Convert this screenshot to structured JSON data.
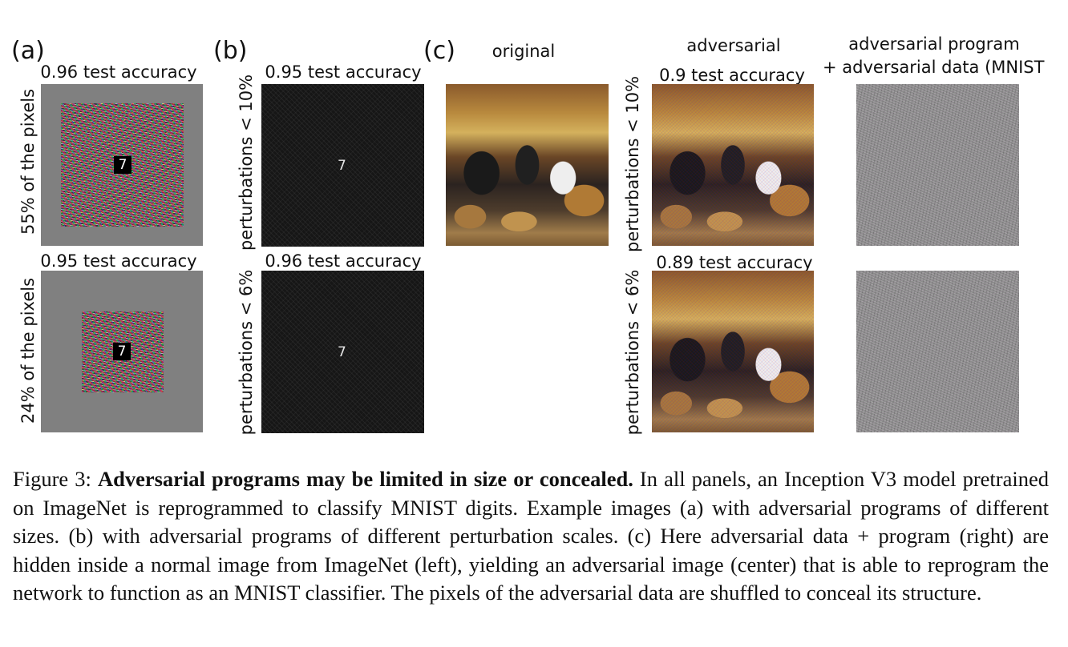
{
  "panels": {
    "a": {
      "label": "(a)",
      "rows": [
        {
          "accuracy": "0.96 test accuracy",
          "side_label": "55% of the pixels",
          "digit": "7"
        },
        {
          "accuracy": "0.95 test accuracy",
          "side_label": "24% of the pixels",
          "digit": "7"
        }
      ]
    },
    "b": {
      "label": "(b)",
      "rows": [
        {
          "accuracy": "0.95 test accuracy",
          "side_label": "perturbations < 10%",
          "digit": "7"
        },
        {
          "accuracy": "0.96 test accuracy",
          "side_label": "perturbations < 6%",
          "digit": "7"
        }
      ]
    },
    "c": {
      "label": "(c)",
      "col_original": "original",
      "col_adversarial": "adversarial",
      "col_program_line1": "adversarial program",
      "col_program_line2": "+ adversarial data (MNIST",
      "rows": [
        {
          "accuracy": "0.9 test accuracy",
          "side_label": "perturbations < 10%"
        },
        {
          "accuracy": "0.89 test accuracy",
          "side_label": "perturbations < 6%"
        }
      ]
    }
  },
  "caption": {
    "prefix": "Figure 3: ",
    "bold": "Adversarial programs may be limited in size or concealed.",
    "rest": " In all panels, an Inception V3 model pretrained on ImageNet is reprogrammed to classify MNIST digits. Example images (a) with adversarial programs of different sizes. (b) with adversarial programs of different perturbation scales. (c) Here adversarial data + program (right) are hidden inside a normal image from ImageNet (left), yielding an adversarial image (center) that is able to reprogram the network to function as an MNIST classifier. The pixels of the adversarial data are shuffled to conceal its structure."
  }
}
